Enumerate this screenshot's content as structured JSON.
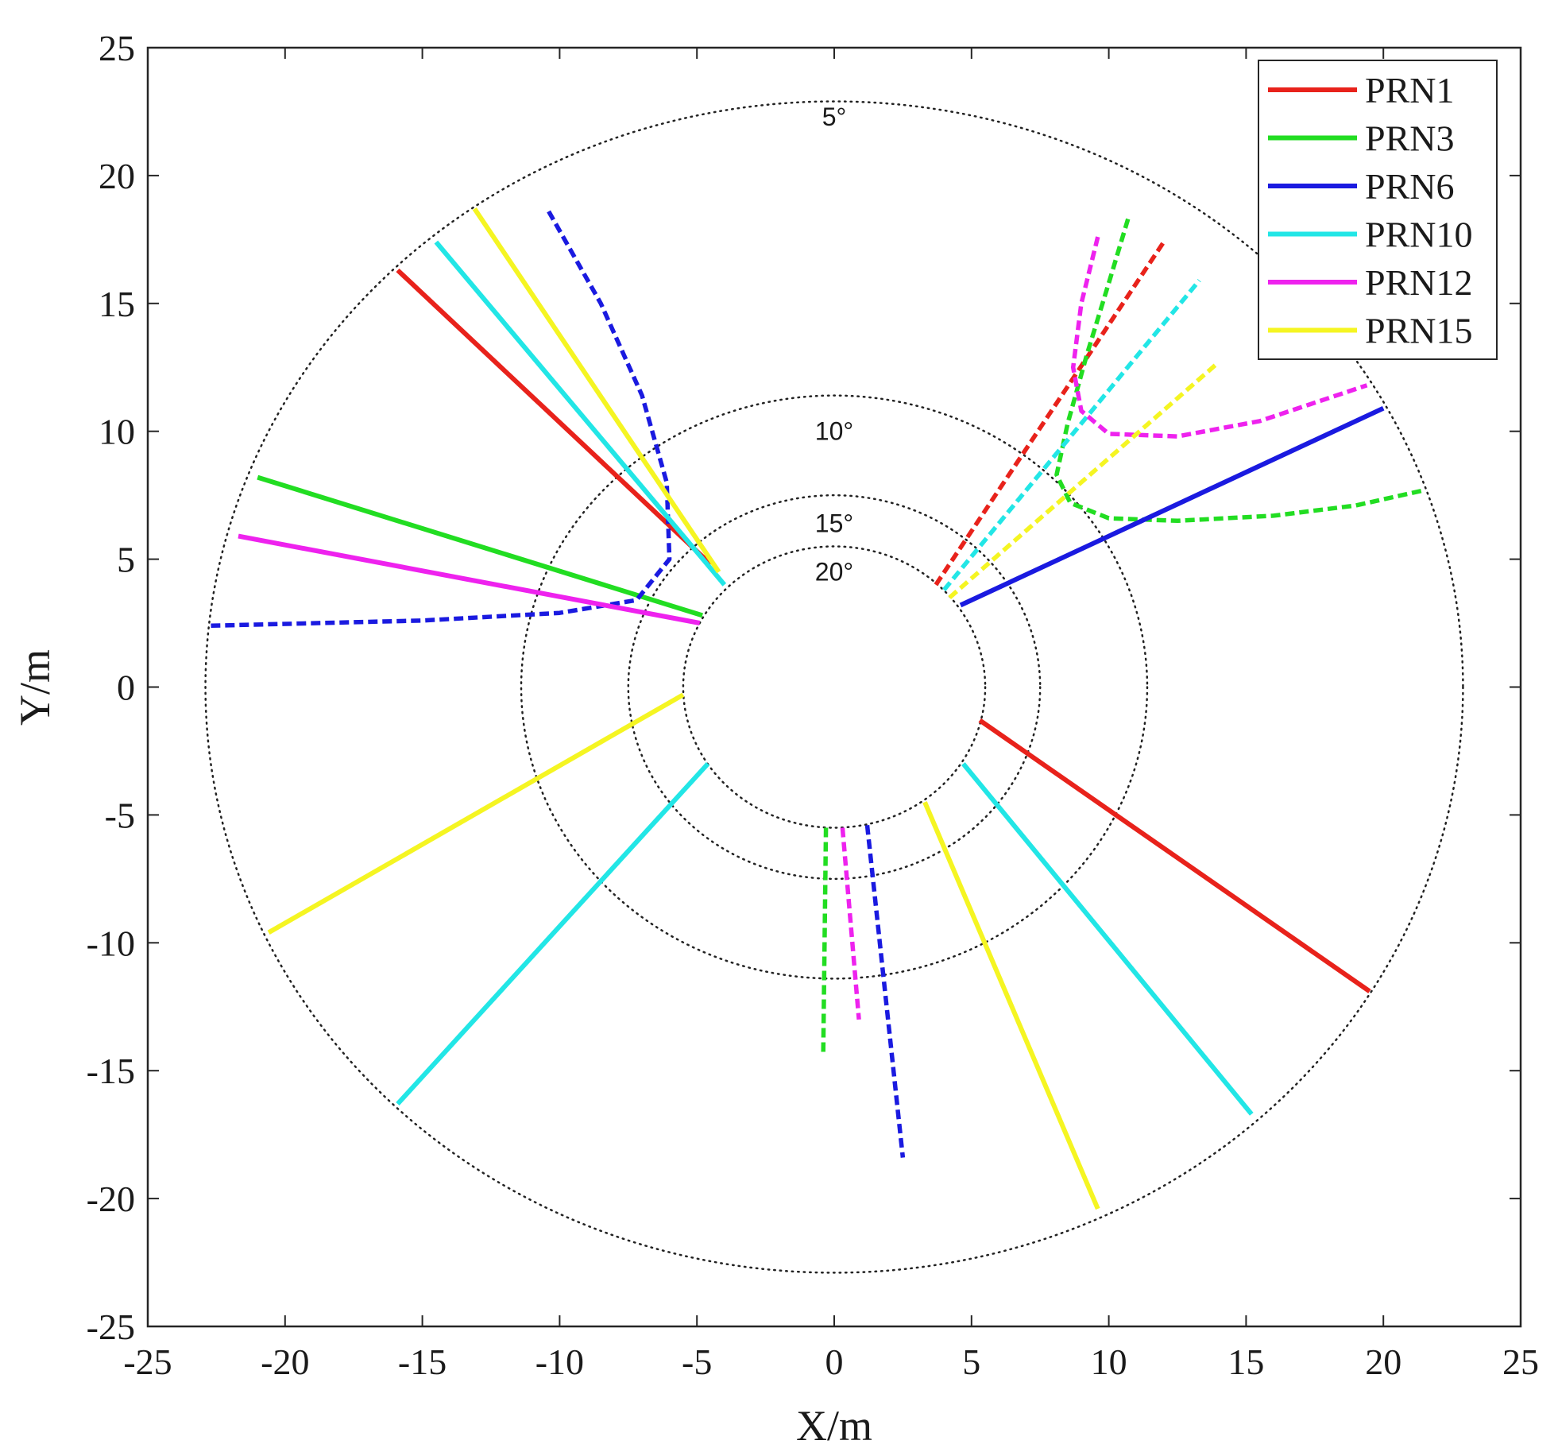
{
  "chart_data": {
    "type": "line",
    "title": "",
    "xlabel": "X/m",
    "ylabel": "Y/m",
    "xlim": [
      -25,
      25
    ],
    "ylim": [
      -25,
      25
    ],
    "xticks": [
      -25,
      -20,
      -15,
      -10,
      -5,
      0,
      5,
      10,
      15,
      20,
      25
    ],
    "yticks": [
      -25,
      -20,
      -15,
      -10,
      -5,
      0,
      5,
      10,
      15,
      20,
      25
    ],
    "xtick_labels": [
      "-25",
      "-20",
      "-15",
      "-10",
      "-5",
      "0",
      "5",
      "10",
      "15",
      "20",
      "25"
    ],
    "ytick_labels": [
      "-25",
      "-20",
      "-15",
      "-10",
      "-5",
      "0",
      "5",
      "10",
      "15",
      "20",
      "25"
    ],
    "grid": false,
    "legend_position": "top-right",
    "colors": {
      "PRN1": "#e8221b",
      "PRN3": "#22dd22",
      "PRN6": "#1a1ae0",
      "PRN10": "#22e6e6",
      "PRN12": "#ee22ee",
      "PRN15": "#f5f522"
    },
    "elevation_rings": [
      {
        "label": "5°",
        "radius": 22.9,
        "label_position": [
          0,
          22.3
        ]
      },
      {
        "label": "10°",
        "radius": 11.4,
        "label_position": [
          0,
          10.0
        ]
      },
      {
        "label": "15°",
        "radius": 7.5,
        "label_position": [
          0,
          6.4
        ]
      },
      {
        "label": "20°",
        "radius": 5.5,
        "label_position": [
          0,
          4.5
        ]
      }
    ],
    "series": [
      {
        "name": "PRN1",
        "style": "solid",
        "points": [
          [
            -15.9,
            16.3
          ],
          [
            -4.5,
            4.8
          ]
        ]
      },
      {
        "name": "PRN1",
        "style": "solid",
        "points": [
          [
            5.3,
            -1.3
          ],
          [
            19.5,
            -11.9
          ]
        ]
      },
      {
        "name": "PRN1",
        "style": "dashed",
        "points": [
          [
            3.7,
            4.0
          ],
          [
            12.0,
            17.4
          ]
        ]
      },
      {
        "name": "PRN3",
        "style": "solid",
        "points": [
          [
            -21.0,
            8.2
          ],
          [
            -4.8,
            2.8
          ]
        ]
      },
      {
        "name": "PRN3",
        "style": "dashed",
        "points": [
          [
            -0.3,
            -5.5
          ],
          [
            -0.4,
            -14.3
          ]
        ]
      },
      {
        "name": "PRN3",
        "style": "dashed",
        "points": [
          [
            10.7,
            18.3
          ],
          [
            10.0,
            15.8
          ],
          [
            9.2,
            13.0
          ],
          [
            8.5,
            10.3
          ],
          [
            8.1,
            8.3
          ],
          [
            8.6,
            7.2
          ],
          [
            10.0,
            6.6
          ],
          [
            12.5,
            6.5
          ],
          [
            16.0,
            6.7
          ],
          [
            19.0,
            7.1
          ],
          [
            21.5,
            7.7
          ]
        ]
      },
      {
        "name": "PRN6",
        "style": "solid",
        "points": [
          [
            4.6,
            3.2
          ],
          [
            20.0,
            10.9
          ]
        ]
      },
      {
        "name": "PRN6",
        "style": "dashed",
        "points": [
          [
            -10.4,
            18.6
          ],
          [
            -8.5,
            15.0
          ],
          [
            -7.0,
            11.4
          ],
          [
            -6.1,
            8.0
          ],
          [
            -6.0,
            5.0
          ],
          [
            -7.2,
            3.4
          ],
          [
            -10.0,
            2.9
          ],
          [
            -15.0,
            2.6
          ],
          [
            -22.7,
            2.4
          ]
        ]
      },
      {
        "name": "PRN6",
        "style": "dashed",
        "points": [
          [
            1.2,
            -5.4
          ],
          [
            2.5,
            -18.4
          ]
        ]
      },
      {
        "name": "PRN10",
        "style": "solid",
        "points": [
          [
            -14.5,
            17.4
          ],
          [
            -4.0,
            4.0
          ]
        ]
      },
      {
        "name": "PRN10",
        "style": "solid",
        "points": [
          [
            -4.6,
            -3.0
          ],
          [
            -15.9,
            -16.3
          ]
        ]
      },
      {
        "name": "PRN10",
        "style": "solid",
        "points": [
          [
            4.7,
            -3.0
          ],
          [
            15.2,
            -16.7
          ]
        ]
      },
      {
        "name": "PRN10",
        "style": "dashed",
        "points": [
          [
            4.0,
            3.8
          ],
          [
            13.3,
            15.9
          ]
        ]
      },
      {
        "name": "PRN12",
        "style": "solid",
        "points": [
          [
            -21.7,
            5.9
          ],
          [
            -4.9,
            2.5
          ]
        ]
      },
      {
        "name": "PRN12",
        "style": "dashed",
        "points": [
          [
            0.3,
            -5.5
          ],
          [
            0.9,
            -13.0
          ]
        ]
      },
      {
        "name": "PRN12",
        "style": "dashed",
        "points": [
          [
            9.6,
            17.6
          ],
          [
            9.0,
            15.0
          ],
          [
            8.7,
            12.5
          ],
          [
            9.0,
            10.8
          ],
          [
            10.0,
            9.9
          ],
          [
            12.5,
            9.8
          ],
          [
            15.5,
            10.4
          ],
          [
            19.4,
            11.8
          ]
        ]
      },
      {
        "name": "PRN15",
        "style": "solid",
        "points": [
          [
            -13.1,
            18.7
          ],
          [
            -4.2,
            4.5
          ]
        ]
      },
      {
        "name": "PRN15",
        "style": "solid",
        "points": [
          [
            -5.5,
            -0.3
          ],
          [
            -20.6,
            -9.6
          ]
        ]
      },
      {
        "name": "PRN15",
        "style": "solid",
        "points": [
          [
            3.3,
            -4.5
          ],
          [
            9.6,
            -20.4
          ]
        ]
      },
      {
        "name": "PRN15",
        "style": "dashed",
        "points": [
          [
            4.2,
            3.5
          ],
          [
            14.0,
            12.7
          ]
        ]
      }
    ],
    "legend": [
      "PRN1",
      "PRN3",
      "PRN6",
      "PRN10",
      "PRN12",
      "PRN15"
    ]
  }
}
